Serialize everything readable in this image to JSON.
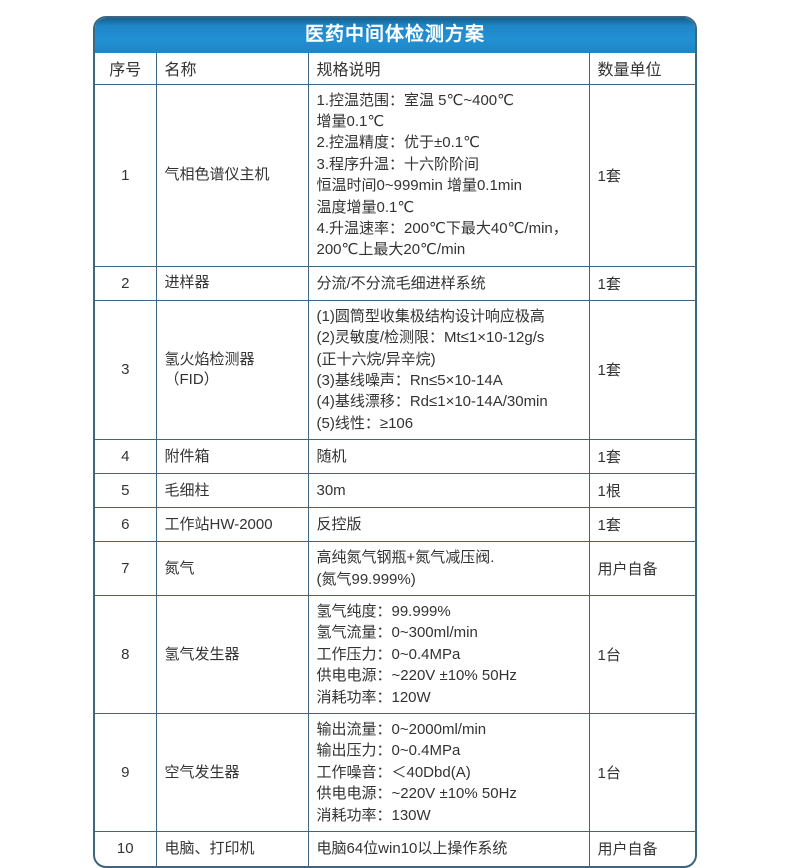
{
  "title": "医药中间体检测方案",
  "colors": {
    "header_blue": "#2190d3",
    "header_blue_dark": "#14608e",
    "border": "#3f6580",
    "text": "#333333",
    "title_text": "#ffffff"
  },
  "table": {
    "headers": [
      "序号",
      "名称",
      "规格说明",
      "数量单位"
    ],
    "rows": [
      {
        "no": "1",
        "name": "气相色谱仪主机",
        "spec": "1.控温范围：室温 5℃~400℃\n增量0.1℃\n2.控温精度：优于±0.1℃\n3.程序升温：十六阶阶间\n恒温时间0~999min 增量0.1min\n温度增量0.1℃\n4.升温速率：200℃下最大40℃/min，\n200℃上最大20℃/min",
        "qty": "1套"
      },
      {
        "no": "2",
        "name": "进样器",
        "spec": "分流/不分流毛细进样系统",
        "qty": "1套"
      },
      {
        "no": "3",
        "name": "氢火焰检测器（FID）",
        "spec": "(1)圆筒型收集极结构设计响应极高\n(2)灵敏度/检测限：Mt≤1×10-12g/s\n(正十六烷/异辛烷)\n(3)基线噪声：Rn≤5×10-14A\n(4)基线漂移：Rd≤1×10-14A/30min\n(5)线性：≥106",
        "qty": "1套"
      },
      {
        "no": "4",
        "name": "附件箱",
        "spec": "随机",
        "qty": "1套"
      },
      {
        "no": "5",
        "name": "毛细柱",
        "spec": "30m",
        "qty": "1根"
      },
      {
        "no": "6",
        "name": "工作站HW-2000",
        "spec": "反控版",
        "qty": "1套"
      },
      {
        "no": "7",
        "name": "氮气",
        "spec": "高纯氮气钢瓶+氮气减压阀.\n(氮气99.999%)",
        "qty": "用户自备"
      },
      {
        "no": "8",
        "name": "氢气发生器",
        "spec": "氢气纯度：99.999%\n氢气流量：0~300ml/min\n工作压力：0~0.4MPa\n供电电源：~220V ±10% 50Hz\n消耗功率：120W",
        "qty": "1台"
      },
      {
        "no": "9",
        "name": "空气发生器",
        "spec": "输出流量：0~2000ml/min\n输出压力：0~0.4MPa\n工作噪音：＜40Dbd(A)\n供电电源：~220V ±10% 50Hz\n消耗功率：130W",
        "qty": "1台"
      },
      {
        "no": "10",
        "name": "电脑、打印机",
        "spec": "电脑64位win10以上操作系统",
        "qty": "用户自备"
      }
    ]
  }
}
